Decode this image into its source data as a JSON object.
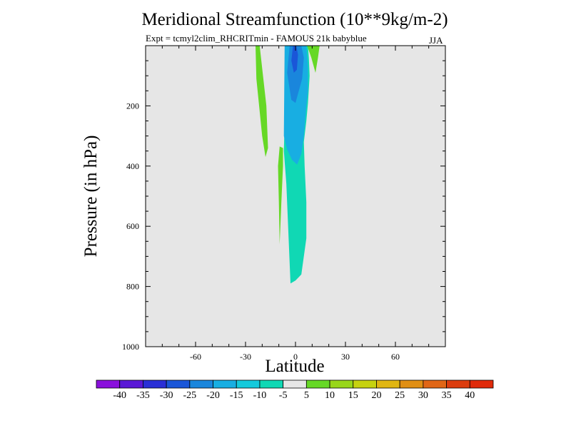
{
  "chart_data": {
    "type": "heatmap",
    "title": "Meridional Streamfunction (10**9kg/m-2)",
    "subtitle": "Expt = tcmyl2clim_RHCRITmin - FAMOUS 21k babyblue",
    "season": "JJA",
    "xlabel": "Latitude",
    "ylabel": "Pressure (in hPa)",
    "xlim": [
      -90,
      90
    ],
    "ylim": [
      1000,
      0
    ],
    "y_inverted": true,
    "x_ticks": [
      -60,
      -30,
      0,
      30,
      60
    ],
    "x_tick_labels": [
      "-60",
      "-30",
      "0",
      "30",
      "60"
    ],
    "y_ticks": [
      200,
      400,
      600,
      800,
      1000
    ],
    "y_tick_labels": [
      "200",
      "400",
      "600",
      "800",
      "1000"
    ],
    "background_color": "#e6e6e6",
    "colorbar": {
      "labels": [
        "-40",
        "-35",
        "-30",
        "-25",
        "-20",
        "-15",
        "-10",
        "-5",
        "5",
        "10",
        "15",
        "20",
        "25",
        "30",
        "35",
        "40"
      ],
      "colors": [
        "#8a10dc",
        "#5a18d6",
        "#2a2fd6",
        "#1a56d8",
        "#1a86dc",
        "#18aee2",
        "#14cadc",
        "#10d8b4",
        "#e6e6e6",
        "#66d826",
        "#98d61a",
        "#c6d210",
        "#e0b612",
        "#e08f14",
        "#e06616",
        "#dc3c0e",
        "#e02a0a"
      ]
    },
    "contour_regions": [
      {
        "name": "negative-column",
        "level": "-10 to -5",
        "color": "#10d8b4",
        "lat": [
          -3,
          0,
          3.5,
          6.5,
          6.5,
          6,
          5.5,
          5.0,
          6.5,
          7.5,
          8.5,
          8,
          7.5,
          6,
          3.5,
          1,
          -2.5,
          -4.5,
          -5.5,
          -6.5,
          -7,
          -5.5
        ],
        "pressure": [
          790,
          780,
          760,
          640,
          520,
          460,
          400,
          320,
          250,
          190,
          100,
          40,
          0,
          0,
          0,
          0,
          0,
          80,
          170,
          250,
          350,
          460
        ]
      },
      {
        "name": "negative-core",
        "level": "-15 to -10",
        "color": "#18aee2",
        "lat": [
          -7,
          -5,
          -2,
          1,
          3.5,
          5,
          6.5,
          7.5,
          7.5,
          6.5,
          5.5,
          4,
          2,
          -1,
          -4,
          -6.5
        ],
        "pressure": [
          300,
          345,
          380,
          395,
          360,
          300,
          200,
          150,
          70,
          0,
          0,
          0,
          0,
          0,
          0,
          0
        ]
      },
      {
        "name": "negative-upper",
        "level": "-20 to -15",
        "color": "#1a86dc",
        "lat": [
          -5,
          -2.5,
          0,
          1.5,
          4,
          5,
          3.5,
          1.5,
          -1,
          -3.5
        ],
        "pressure": [
          90,
          180,
          190,
          160,
          110,
          40,
          0,
          0,
          0,
          0
        ]
      },
      {
        "name": "negative-max",
        "level": "-25 to -20",
        "color": "#1a56d8",
        "lat": [
          -2.5,
          -1,
          0.8,
          1.5,
          0.5,
          -1.5
        ],
        "pressure": [
          50,
          90,
          80,
          30,
          0,
          0
        ]
      },
      {
        "name": "positive-left-upper",
        "level": "5 to 10",
        "color": "#66d826",
        "lat": [
          -24,
          -21.5,
          -19.5,
          -17.5,
          -16.5,
          -18,
          -20,
          -23.5
        ],
        "pressure": [
          0,
          0,
          100,
          200,
          340,
          370,
          300,
          110
        ]
      },
      {
        "name": "positive-left-lower",
        "level": "5 to 10",
        "color": "#66d826",
        "lat": [
          -10.5,
          -9.5,
          -7.5,
          -7.5,
          -8.5,
          -9.5,
          -10
        ],
        "pressure": [
          400,
          335,
          340,
          400,
          520,
          660,
          520
        ]
      },
      {
        "name": "positive-right-upper",
        "level": "5 to 10",
        "color": "#66d826",
        "lat": [
          7,
          10.5,
          14.5,
          13.5,
          12,
          9.5
        ],
        "pressure": [
          0,
          0,
          0,
          40,
          90,
          40
        ]
      }
    ]
  }
}
